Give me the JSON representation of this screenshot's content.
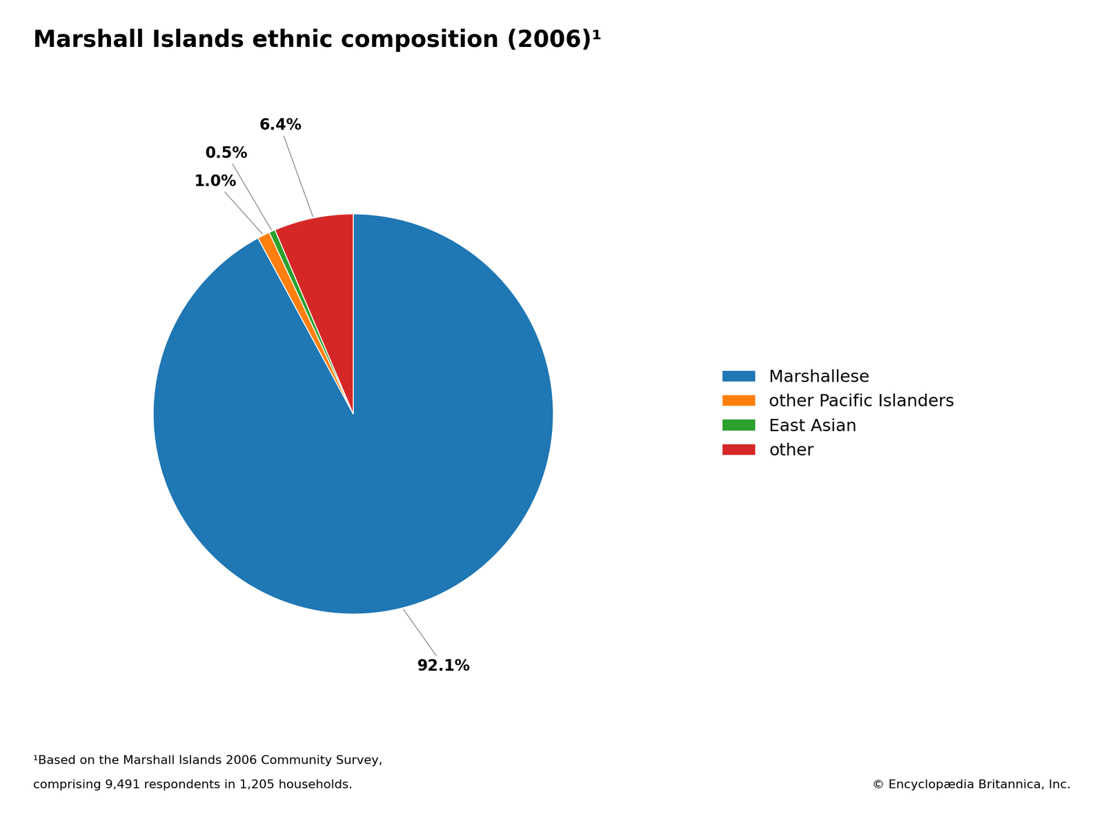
{
  "chart_data": {
    "type": "pie",
    "title": "Marshall Islands ethnic composition (2006)¹",
    "categories": [
      "Marshallese",
      "other Pacific Islanders",
      "East Asian",
      "other"
    ],
    "values": [
      92.1,
      1.0,
      0.5,
      6.4
    ],
    "value_labels": [
      "92.1%",
      "1.0%",
      "0.5%",
      "6.4%"
    ],
    "data_labels": true,
    "legend": "center left",
    "annotations": [
      "¹Based on the Marshall Islands 2006 Community Survey,",
      "comprising 9,491 respondents in 1,205 households.",
      "© Encyclopædia Britannica, Inc."
    ]
  }
}
